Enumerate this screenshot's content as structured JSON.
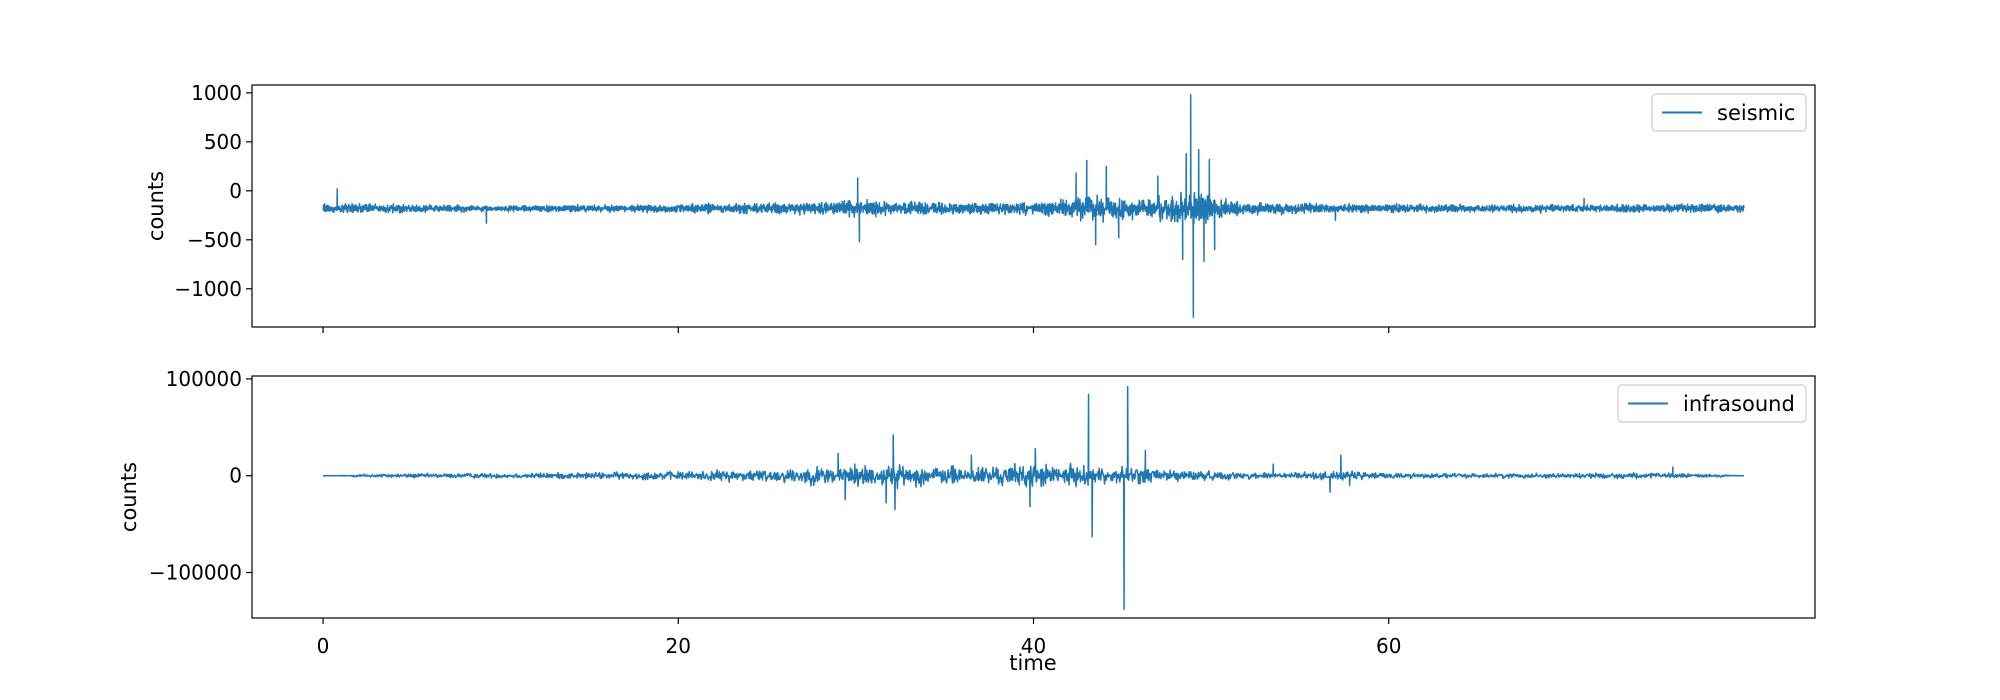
{
  "colors": {
    "line": "#1f77b4",
    "axes": "#000000",
    "background": "#ffffff"
  },
  "chart_data": [
    {
      "type": "line",
      "xlabel": "",
      "ylabel": "counts",
      "xlim": [
        -4,
        84
      ],
      "ylim": [
        -1390,
        1080
      ],
      "xticks": [
        0,
        20,
        40,
        60
      ],
      "xtick_labels_visible": false,
      "yticks": [
        1000,
        500,
        0,
        -500,
        -1000
      ],
      "ytick_labels": [
        "1000",
        "500",
        "0",
        "−500",
        "−1000"
      ],
      "grid": false,
      "legend_position": "top-right",
      "series": [
        {
          "name": "seismic",
          "color": "#1f77b4",
          "x_range": [
            0,
            80
          ],
          "baseline": -180,
          "noise_envelope": [
            [
              0,
              50
            ],
            [
              1,
              70
            ],
            [
              5,
              50
            ],
            [
              10,
              40
            ],
            [
              15,
              45
            ],
            [
              20,
              55
            ],
            [
              25,
              70
            ],
            [
              28,
              75
            ],
            [
              30,
              110
            ],
            [
              32,
              90
            ],
            [
              35,
              80
            ],
            [
              40,
              80
            ],
            [
              42,
              130
            ],
            [
              44,
              170
            ],
            [
              46,
              110
            ],
            [
              48,
              200
            ],
            [
              49.5,
              220
            ],
            [
              51,
              100
            ],
            [
              55,
              65
            ],
            [
              60,
              55
            ],
            [
              65,
              50
            ],
            [
              70,
              50
            ],
            [
              75,
              50
            ],
            [
              80,
              60
            ]
          ],
          "spikes": [
            {
              "x": 0.8,
              "y": 20
            },
            {
              "x": 9.2,
              "y": -330
            },
            {
              "x": 30.1,
              "y": 130
            },
            {
              "x": 30.2,
              "y": -520
            },
            {
              "x": 42.4,
              "y": 180
            },
            {
              "x": 43.0,
              "y": 310
            },
            {
              "x": 43.5,
              "y": -550
            },
            {
              "x": 44.1,
              "y": 250
            },
            {
              "x": 44.8,
              "y": -480
            },
            {
              "x": 47.0,
              "y": 150
            },
            {
              "x": 48.4,
              "y": -700
            },
            {
              "x": 48.6,
              "y": 380
            },
            {
              "x": 48.85,
              "y": 980
            },
            {
              "x": 49.0,
              "y": -1290
            },
            {
              "x": 49.3,
              "y": 420
            },
            {
              "x": 49.6,
              "y": -720
            },
            {
              "x": 49.9,
              "y": 320
            },
            {
              "x": 50.2,
              "y": -600
            },
            {
              "x": 57.0,
              "y": -300
            },
            {
              "x": 71.0,
              "y": -80
            }
          ]
        }
      ]
    },
    {
      "type": "line",
      "xlabel": "time",
      "ylabel": "counts",
      "xlim": [
        -4,
        84
      ],
      "ylim": [
        -147000,
        103000
      ],
      "xticks": [
        0,
        20,
        40,
        60
      ],
      "xtick_labels": [
        "0",
        "20",
        "40",
        "60"
      ],
      "yticks": [
        100000,
        0,
        -100000
      ],
      "ytick_labels": [
        "100000",
        "0",
        "−100000"
      ],
      "grid": false,
      "legend_position": "top-right",
      "series": [
        {
          "name": "infrasound",
          "color": "#1f77b4",
          "x_range": [
            0,
            80
          ],
          "baseline": 0,
          "noise_envelope": [
            [
              0,
              0
            ],
            [
              1.5,
              600
            ],
            [
              2,
              2500
            ],
            [
              5,
              3000
            ],
            [
              10,
              3500
            ],
            [
              15,
              4500
            ],
            [
              20,
              6000
            ],
            [
              23,
              8000
            ],
            [
              26,
              10000
            ],
            [
              28,
              13000
            ],
            [
              30,
              16000
            ],
            [
              32,
              15000
            ],
            [
              35,
              13000
            ],
            [
              38,
              14000
            ],
            [
              40,
              17000
            ],
            [
              42,
              15000
            ],
            [
              44,
              11000
            ],
            [
              46,
              12000
            ],
            [
              48,
              9000
            ],
            [
              50,
              6000
            ],
            [
              52,
              4500
            ],
            [
              55,
              5000
            ],
            [
              58,
              6000
            ],
            [
              60,
              4000
            ],
            [
              65,
              3000
            ],
            [
              70,
              3500
            ],
            [
              74,
              4000
            ],
            [
              78,
              2500
            ],
            [
              80,
              0
            ]
          ],
          "spikes": [
            {
              "x": 29.0,
              "y": 23000
            },
            {
              "x": 29.4,
              "y": -25000
            },
            {
              "x": 31.7,
              "y": -28000
            },
            {
              "x": 32.1,
              "y": 42000
            },
            {
              "x": 32.2,
              "y": -35000
            },
            {
              "x": 36.5,
              "y": 21000
            },
            {
              "x": 39.8,
              "y": -32000
            },
            {
              "x": 40.1,
              "y": 28000
            },
            {
              "x": 43.1,
              "y": 84000
            },
            {
              "x": 43.3,
              "y": -63000
            },
            {
              "x": 45.1,
              "y": -138000
            },
            {
              "x": 45.3,
              "y": 92000
            },
            {
              "x": 46.3,
              "y": 26000
            },
            {
              "x": 53.5,
              "y": 12000
            },
            {
              "x": 56.7,
              "y": -17000
            },
            {
              "x": 57.3,
              "y": 21000
            },
            {
              "x": 57.8,
              "y": -10000
            },
            {
              "x": 76.0,
              "y": 9000
            }
          ]
        }
      ]
    }
  ]
}
